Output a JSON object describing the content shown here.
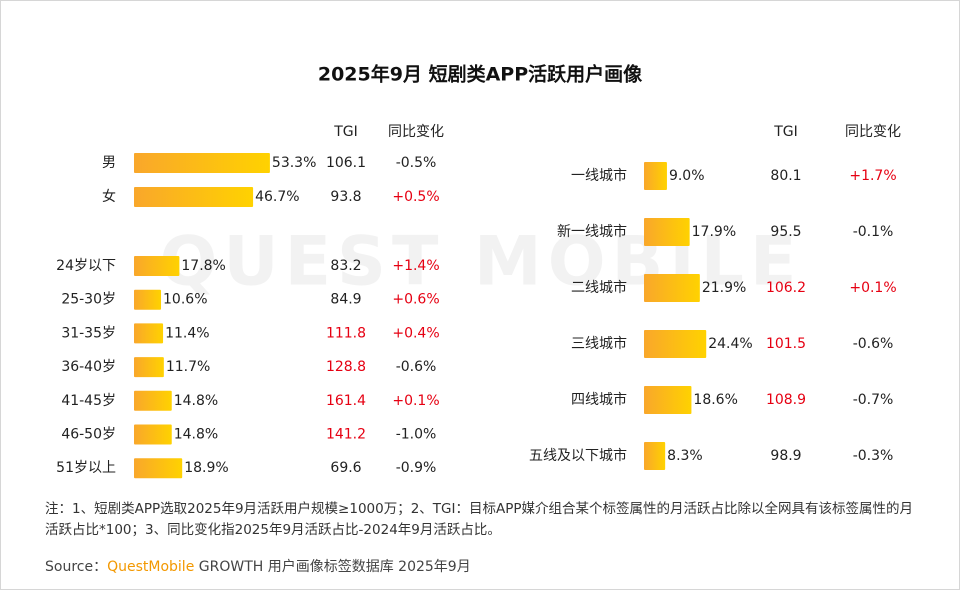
{
  "title": "2025年9月 短剧类APP活跃用户画像",
  "watermark": "QUEST MOBILE",
  "chart_data": [
    {
      "type": "bar",
      "orientation": "horizontal",
      "colors": [
        "#f9a72b",
        "#ffd200"
      ],
      "categories": [
        "男",
        "女",
        null,
        "24岁以下",
        "25-30岁",
        "31-35岁",
        "36-40岁",
        "41-45岁",
        "46-50岁",
        "51岁以上"
      ],
      "values": [
        53.3,
        46.7,
        null,
        17.8,
        10.6,
        11.4,
        11.7,
        14.8,
        14.8,
        18.9
      ],
      "value_labels": [
        "53.3%",
        "46.7%",
        null,
        "17.8%",
        "10.6%",
        "11.4%",
        "11.7%",
        "14.8%",
        "14.8%",
        "18.9%"
      ],
      "columns": [
        {
          "name": "TGI",
          "values": [
            106.1,
            93.8,
            null,
            83.2,
            84.9,
            111.8,
            128.8,
            161.4,
            141.2,
            69.6
          ],
          "highlight": [
            false,
            false,
            null,
            false,
            false,
            true,
            true,
            true,
            true,
            false
          ]
        },
        {
          "name": "同比变化",
          "values": [
            -0.5,
            0.5,
            null,
            1.4,
            0.6,
            0.4,
            -0.6,
            0.1,
            -1.0,
            -0.9
          ],
          "value_labels": [
            "-0.5%",
            "+0.5%",
            null,
            "+1.4%",
            "+0.6%",
            "+0.4%",
            "-0.6%",
            "+0.1%",
            "-1.0%",
            "-0.9%"
          ],
          "highlight": [
            false,
            true,
            null,
            true,
            true,
            true,
            false,
            true,
            false,
            false
          ]
        }
      ]
    },
    {
      "type": "bar",
      "orientation": "horizontal",
      "colors": [
        "#f9a72b",
        "#ffd200"
      ],
      "categories": [
        "一线城市",
        "新一线城市",
        "二线城市",
        "三线城市",
        "四线城市",
        "五线及以下城市"
      ],
      "values": [
        9.0,
        17.9,
        21.9,
        24.4,
        18.6,
        8.3
      ],
      "value_labels": [
        "9.0%",
        "17.9%",
        "21.9%",
        "24.4%",
        "18.6%",
        "8.3%"
      ],
      "columns": [
        {
          "name": "TGI",
          "values": [
            80.1,
            95.5,
            106.2,
            101.5,
            108.9,
            98.9
          ],
          "highlight": [
            false,
            false,
            true,
            true,
            true,
            false
          ]
        },
        {
          "name": "同比变化",
          "values": [
            1.7,
            -0.1,
            0.1,
            -0.6,
            -0.7,
            -0.3
          ],
          "value_labels": [
            "+1.7%",
            "-0.1%",
            "+0.1%",
            "-0.6%",
            "-0.7%",
            "-0.3%"
          ],
          "highlight": [
            true,
            false,
            true,
            false,
            false,
            false
          ]
        }
      ]
    }
  ],
  "note": "注：1、短剧类APP选取2025年9月活跃用户规模≥1000万；2、TGI：目标APP媒介组合某个标签属性的月活跃占比除以全网具有该标签属性的月活跃占比*100；3、同比变化指2025年9月活跃占比-2024年9月活跃占比。",
  "source": {
    "prefix": "Source：",
    "brand": "QuestMobile",
    "rest": "GROWTH 用户画像标签数据库 2025年9月"
  }
}
